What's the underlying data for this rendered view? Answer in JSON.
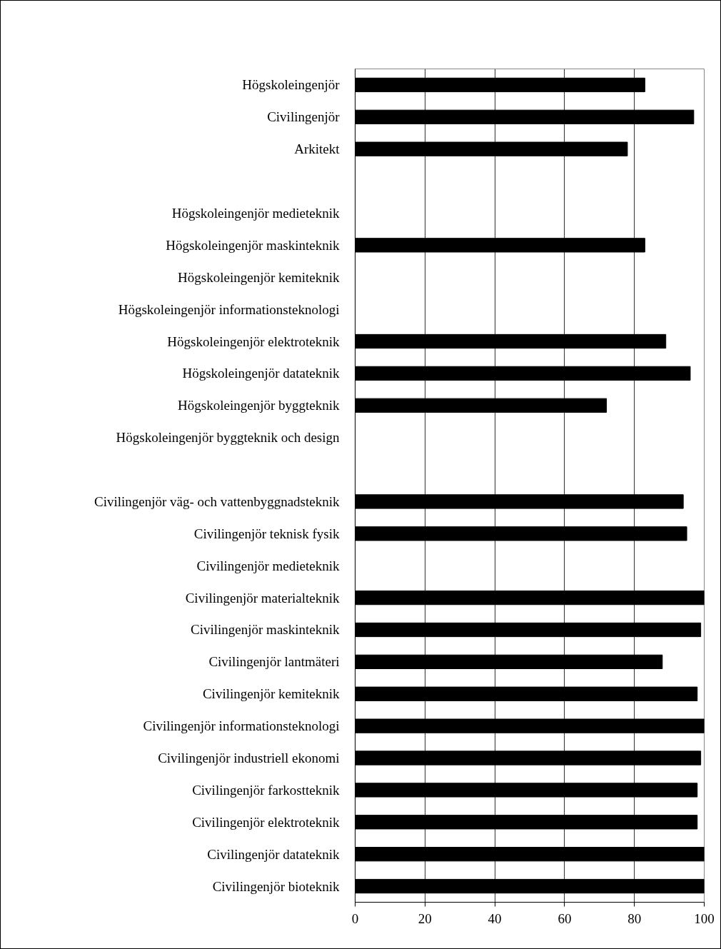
{
  "chart_data": {
    "type": "bar",
    "orientation": "horizontal",
    "categories": [
      "Högskoleingenjör",
      "Civilingenjör",
      "Arkitekt",
      null,
      "Högskoleingenjör medieteknik",
      "Högskoleingenjör maskinteknik",
      "Högskoleingenjör kemiteknik",
      "Högskoleingenjör informationsteknologi",
      "Högskoleingenjör elektroteknik",
      "Högskoleingenjör datateknik",
      "Högskoleingenjör byggteknik",
      "Högskoleingenjör byggteknik och design",
      null,
      "Civilingenjör väg- och vattenbyggnadsteknik",
      "Civilingenjör teknisk fysik",
      "Civilingenjör medieteknik",
      "Civilingenjör materialteknik",
      "Civilingenjör maskinteknik",
      "Civilingenjör lantmäteri",
      "Civilingenjör kemiteknik",
      "Civilingenjör informationsteknologi",
      "Civilingenjör industriell ekonomi",
      "Civilingenjör farkostteknik",
      "Civilingenjör elektroteknik",
      "Civilingenjör datateknik",
      "Civilingenjör bioteknik"
    ],
    "values": [
      83,
      97,
      78,
      null,
      null,
      83,
      null,
      null,
      89,
      96,
      72,
      null,
      null,
      94,
      95,
      null,
      100,
      99,
      88,
      98,
      100,
      99,
      98,
      98,
      100,
      100
    ],
    "color": "#000000",
    "xlim": [
      0,
      100
    ],
    "xticks": [
      0,
      20,
      40,
      60,
      80,
      100
    ],
    "grid": "x"
  }
}
